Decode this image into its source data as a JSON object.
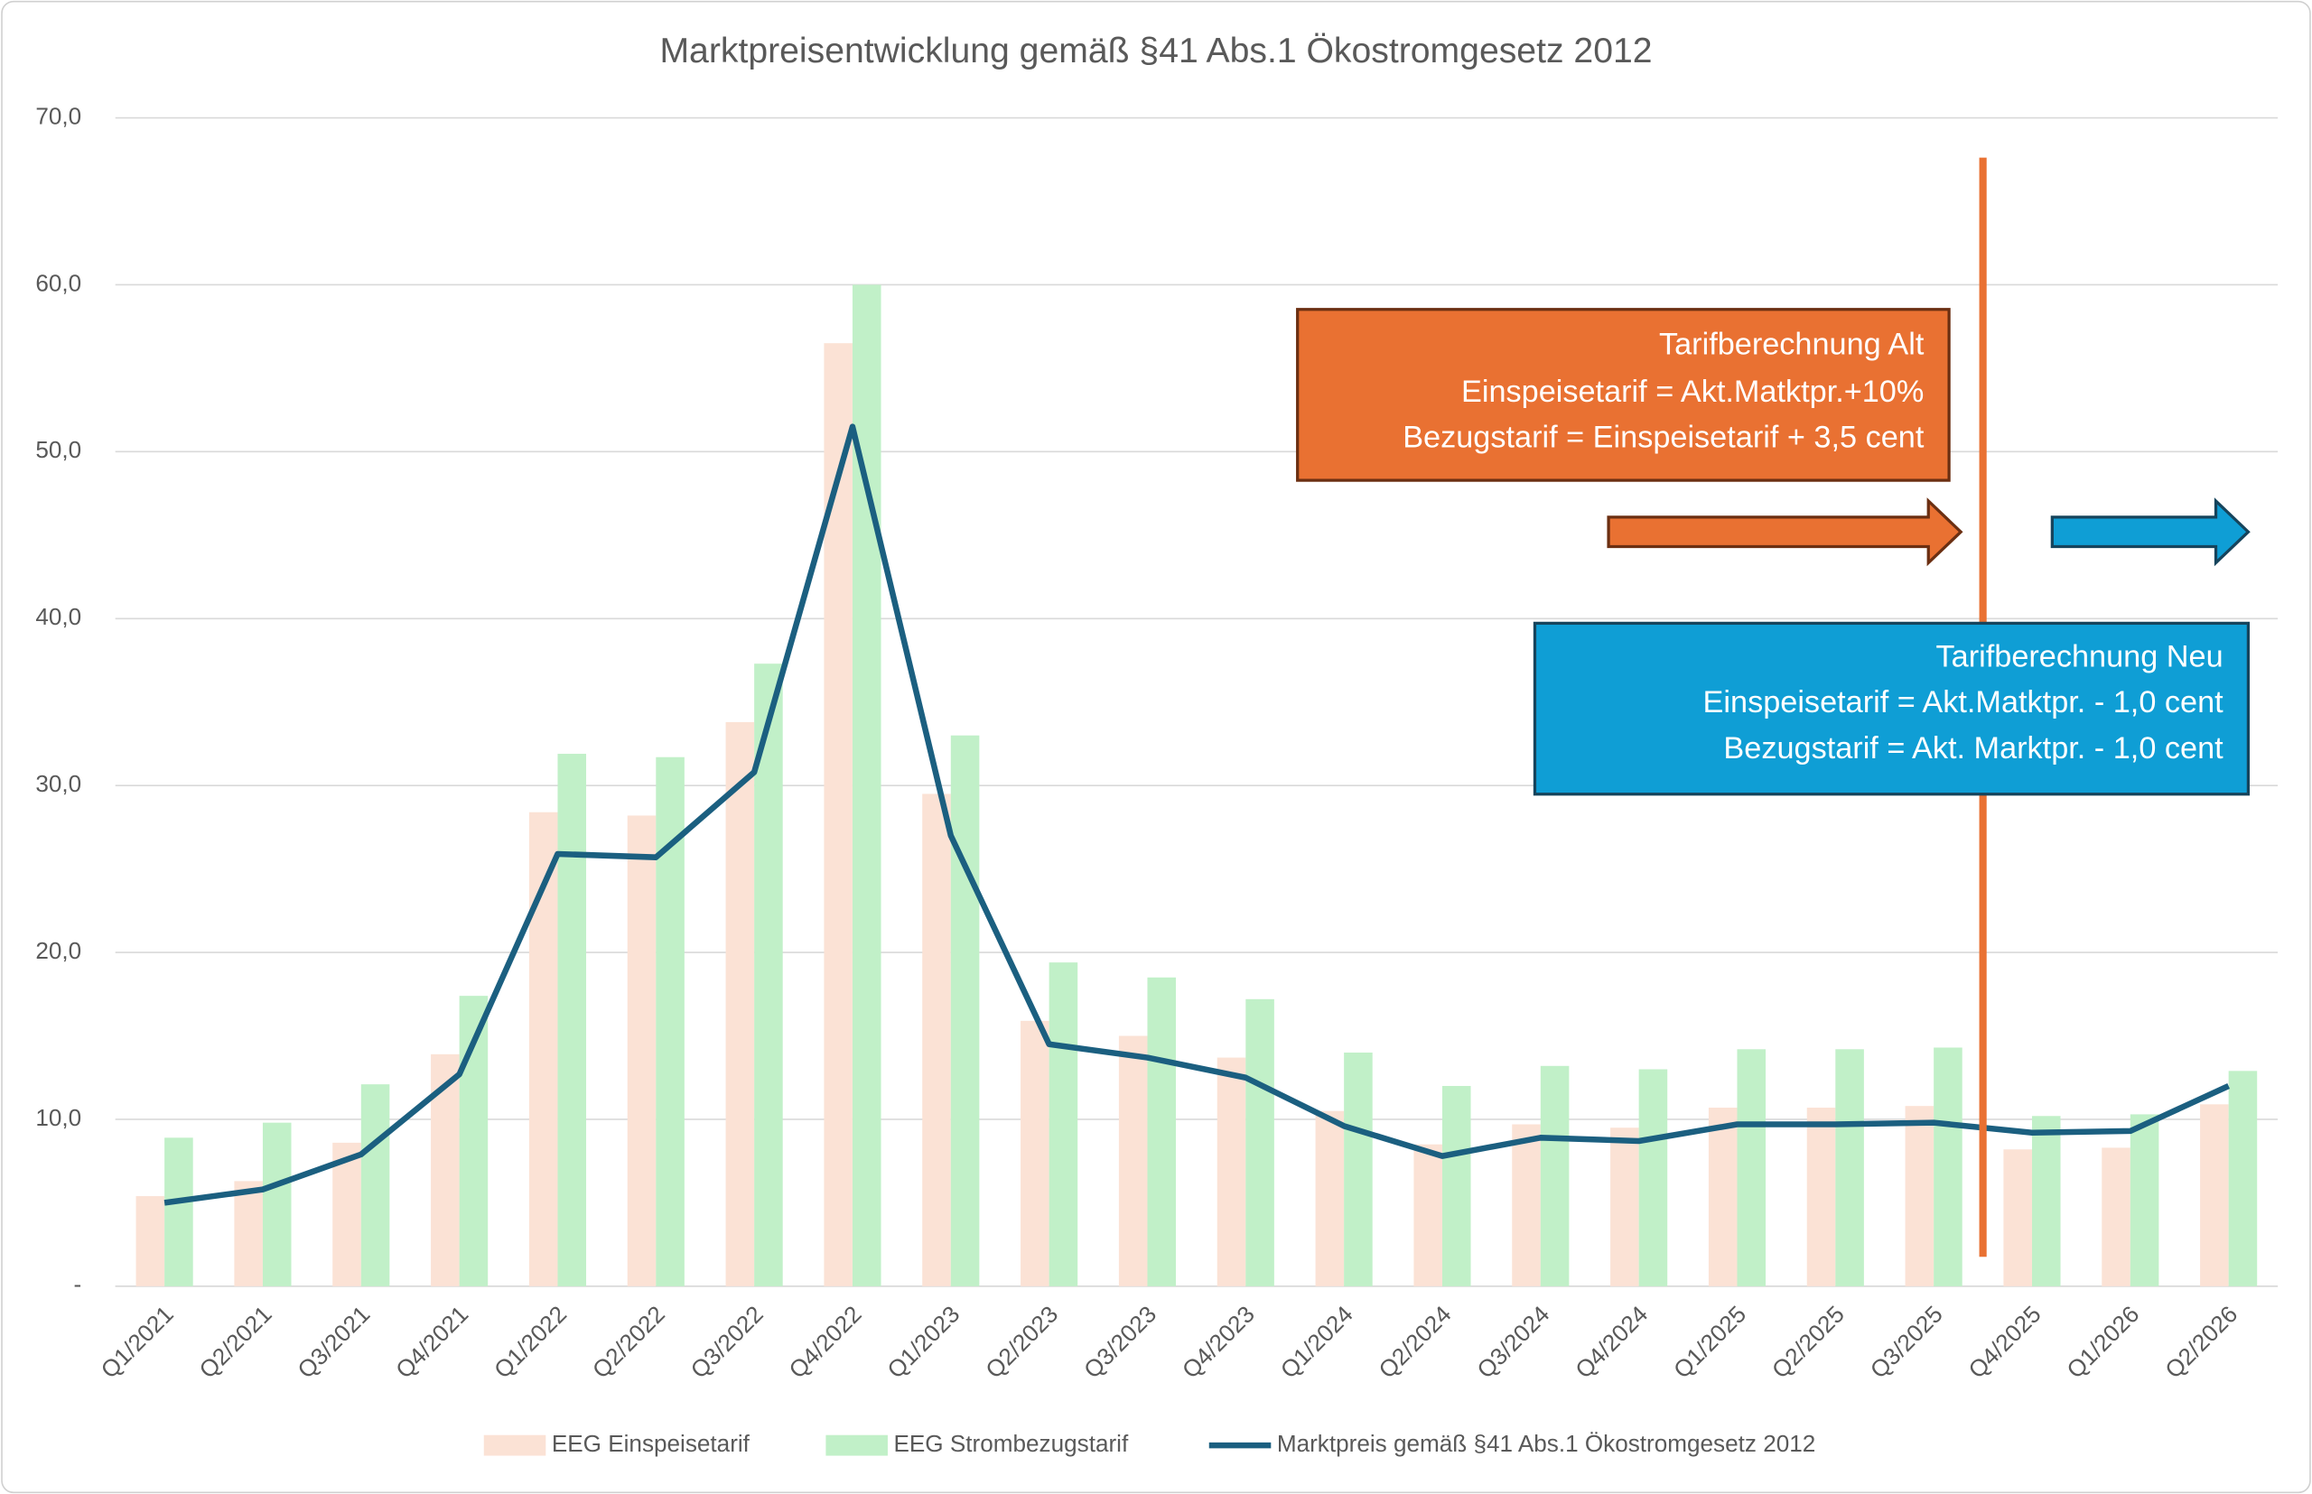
{
  "chart_data": {
    "type": "bar-line",
    "title": "Marktpreisentwicklung gemäß §41 Abs.1 Ökostromgesetz 2012",
    "categories": [
      "Q1/2021",
      "Q2/2021",
      "Q3/2021",
      "Q4/2021",
      "Q1/2022",
      "Q2/2022",
      "Q3/2022",
      "Q4/2022",
      "Q1/2023",
      "Q2/2023",
      "Q3/2023",
      "Q4/2023",
      "Q1/2024",
      "Q2/2024",
      "Q3/2024",
      "Q4/2024",
      "Q1/2025",
      "Q2/2025",
      "Q3/2025",
      "Q4/2025",
      "Q1/2026",
      "Q2/2026"
    ],
    "series": [
      {
        "name": "EEG Einspeisetarif",
        "type": "bar",
        "color": "#fbe2d5",
        "values": [
          5.4,
          6.3,
          8.6,
          13.9,
          28.4,
          28.2,
          33.8,
          56.5,
          29.5,
          15.9,
          15.0,
          13.7,
          10.5,
          8.5,
          9.7,
          9.5,
          10.7,
          10.7,
          10.8,
          8.2,
          8.3,
          10.9
        ]
      },
      {
        "name": "EEG Strombezugstarif",
        "type": "bar",
        "color": "#c1f0c8",
        "values": [
          8.9,
          9.8,
          12.1,
          17.4,
          31.9,
          31.7,
          37.3,
          60.0,
          33.0,
          19.4,
          18.5,
          17.2,
          14.0,
          12.0,
          13.2,
          13.0,
          14.2,
          14.2,
          14.3,
          10.2,
          10.3,
          12.9
        ]
      },
      {
        "name": "Marktpreis gemäß §41 Abs.1 Ökostromgesetz 2012",
        "type": "line",
        "color": "#1b5f80",
        "values": [
          5.0,
          5.8,
          7.9,
          12.7,
          25.9,
          25.7,
          30.8,
          51.5,
          27.0,
          14.5,
          13.7,
          12.5,
          9.6,
          7.8,
          8.9,
          8.7,
          9.7,
          9.7,
          9.8,
          9.2,
          9.3,
          12.0
        ]
      }
    ],
    "ylim": [
      0,
      70
    ],
    "yticks": [
      {
        "value": 0,
        "label": "-"
      },
      {
        "value": 10,
        "label": "10,0"
      },
      {
        "value": 20,
        "label": "20,0"
      },
      {
        "value": 30,
        "label": "30,0"
      },
      {
        "value": 40,
        "label": "40,0"
      },
      {
        "value": 50,
        "label": "50,0"
      },
      {
        "value": 60,
        "label": "60,0"
      },
      {
        "value": 70,
        "label": "70,0"
      }
    ],
    "grid": true,
    "legend": "bottom",
    "annotations": [
      {
        "lines": [
          "Tarifberechnung Alt",
          "Einspeisetarif = Akt.Matktpr.+10%",
          "Bezugstarif = Einspeisetarif + 3,5 cent"
        ],
        "color": "#e97132"
      },
      {
        "lines": [
          "Tarifberechnung Neu",
          "Einspeisetarif = Akt.Matktpr. - 1,0 cent",
          "Bezugstarif = Akt. Marktpr. - 1,0 cent"
        ],
        "color": "#0f9ed5"
      }
    ]
  }
}
